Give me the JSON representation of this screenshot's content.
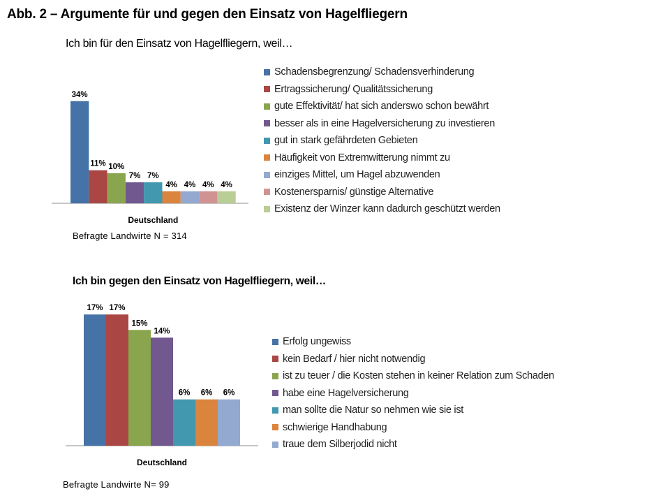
{
  "page": {
    "title": "Abb. 2 – Argumente für und gegen den Einsatz von Hagelfliegern"
  },
  "chart_data": [
    {
      "type": "bar",
      "title": "Ich bin für den Einsatz von Hagelfliegern, weil…",
      "xlabel": "Deutschland",
      "ylabel": "",
      "categories": [
        "Deutschland"
      ],
      "ylim": [
        0,
        40
      ],
      "unit": "%",
      "series": [
        {
          "name": "Schadensbegrenzung/ Schadensverhinderung",
          "values": [
            34
          ],
          "color": "#4572a7"
        },
        {
          "name": "Ertragssicherung/ Qualitätssicherung",
          "values": [
            11
          ],
          "color": "#aa4643"
        },
        {
          "name": "gute Effektivität/ hat sich anderswo schon bewährt",
          "values": [
            10
          ],
          "color": "#89a54e"
        },
        {
          "name": "besser als in eine Hagelversicherung zu investieren",
          "values": [
            7
          ],
          "color": "#71588f"
        },
        {
          "name": "gut in stark gefährdeten Gebieten",
          "values": [
            7
          ],
          "color": "#4198af"
        },
        {
          "name": "Häufigkeit von Extremwitterung nimmt zu",
          "values": [
            4
          ],
          "color": "#db843d"
        },
        {
          "name": "einziges Mittel, um Hagel abzuwenden",
          "values": [
            4
          ],
          "color": "#93a9cf"
        },
        {
          "name": "Kostenersparnis/ günstige Alternative",
          "values": [
            4
          ],
          "color": "#d19392"
        },
        {
          "name": "Existenz der Winzer kann dadurch geschützt werden",
          "values": [
            4
          ],
          "color": "#b9cd96"
        }
      ],
      "note": "Befragte Landwirte  N = 314",
      "legend": "right",
      "grid": false
    },
    {
      "type": "bar",
      "title": "Ich bin gegen den Einsatz von Hagelfliegern, weil…",
      "xlabel": "Deutschland",
      "ylabel": "",
      "categories": [
        "Deutschland"
      ],
      "ylim": [
        0,
        20
      ],
      "unit": "%",
      "series": [
        {
          "name": "Erfolg ungewiss",
          "values": [
            17
          ],
          "color": "#4572a7"
        },
        {
          "name": "kein Bedarf / hier nicht notwendig",
          "values": [
            17
          ],
          "color": "#aa4643"
        },
        {
          "name": "ist zu teuer / die Kosten stehen in keiner Relation zum Schaden",
          "values": [
            15
          ],
          "color": "#89a54e"
        },
        {
          "name": "habe eine Hagelversicherung",
          "values": [
            14
          ],
          "color": "#71588f"
        },
        {
          "name": "man sollte die Natur so nehmen wie sie ist",
          "values": [
            6
          ],
          "color": "#4198af"
        },
        {
          "name": "schwierige Handhabung",
          "values": [
            6
          ],
          "color": "#db843d"
        },
        {
          "name": "traue dem Silberjodid nicht",
          "values": [
            6
          ],
          "color": "#93a9cf"
        }
      ],
      "note": "Befragte Landwirte N= 99",
      "legend": "right",
      "grid": false
    }
  ]
}
